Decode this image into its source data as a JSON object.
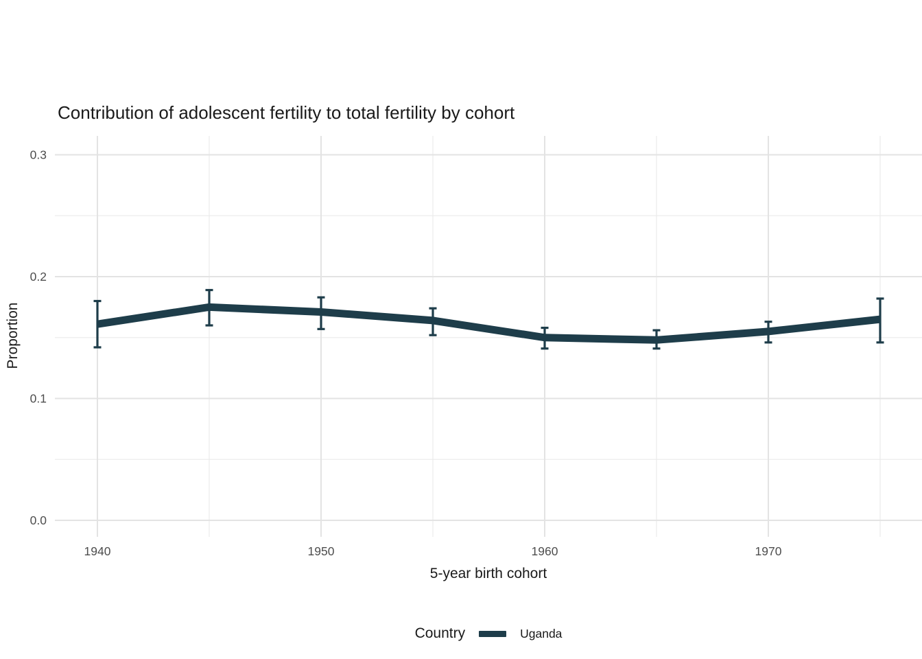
{
  "chart_data": {
    "type": "line",
    "title": "Contribution of adolescent fertility to total fertility by cohort",
    "xlabel": "5-year birth cohort",
    "ylabel": "Proportion",
    "legend_title": "Country",
    "legend_position": "bottom",
    "grid": true,
    "xlim": [
      1938,
      1977
    ],
    "ylim": [
      0,
      0.3
    ],
    "x_ticks": {
      "major": [
        1940,
        1950,
        1960,
        1970
      ],
      "major_labels": [
        "1940",
        "1950",
        "1960",
        "1970"
      ],
      "minor": [
        1945,
        1955,
        1965,
        1975
      ]
    },
    "y_ticks": {
      "major": [
        0,
        0.1,
        0.2,
        0.3
      ],
      "major_labels": [
        "0.0",
        "0.1",
        "0.2",
        "0.3"
      ],
      "minor": [
        0.05,
        0.15,
        0.25
      ]
    },
    "series": [
      {
        "name": "Uganda",
        "color": "#1e3d4a",
        "x": [
          1940,
          1945,
          1950,
          1955,
          1960,
          1965,
          1970,
          1975
        ],
        "y": [
          0.161,
          0.175,
          0.171,
          0.164,
          0.15,
          0.148,
          0.155,
          0.165
        ],
        "ci_low": [
          0.142,
          0.16,
          0.157,
          0.152,
          0.141,
          0.141,
          0.146,
          0.146
        ],
        "ci_high": [
          0.18,
          0.189,
          0.183,
          0.174,
          0.158,
          0.156,
          0.163,
          0.182
        ]
      }
    ],
    "style": {
      "grid_major_color": "#e3e3e3",
      "grid_minor_color": "#ebebeb",
      "tick_label_color": "#4d4d4d",
      "text_color": "#1a1a1a",
      "background": "#ffffff"
    }
  }
}
